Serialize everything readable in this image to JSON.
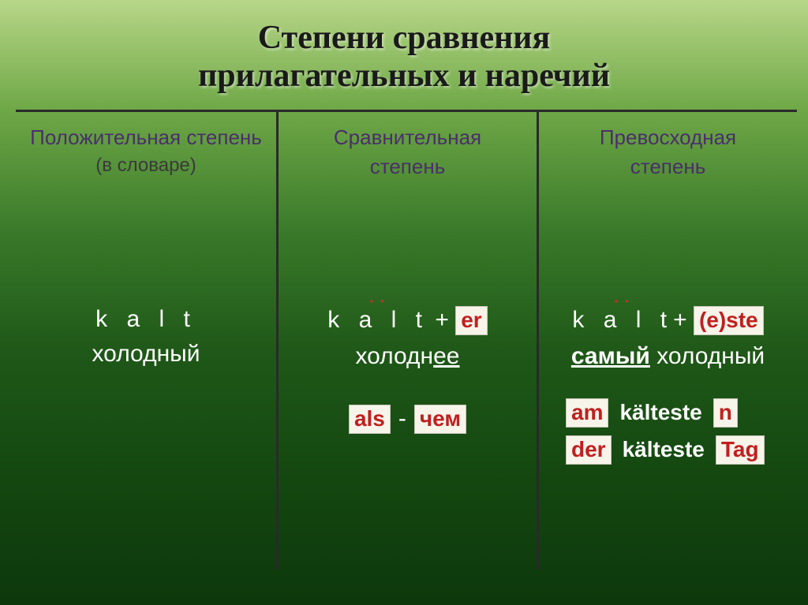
{
  "title_line1": "Степени сравнения",
  "title_line2": "прилагательных и наречий",
  "headers": {
    "pos": {
      "main": "Положительная степень",
      "sub": "(в словаре)"
    },
    "comp": {
      "main": "Сравнительная",
      "sub2": "степень"
    },
    "sup": {
      "main": "Превосходная",
      "sub2": "степень"
    }
  },
  "positive": {
    "word": "k a l t",
    "ru": "холодный"
  },
  "comparative": {
    "word": "k a l t",
    "plus": "+",
    "suffix": "er",
    "ru_stem": "холодн",
    "ru_end": "ее",
    "als": "als",
    "dash": "-",
    "chem": "чем"
  },
  "superlative": {
    "word": "k a l t",
    "plus": "+",
    "suffix": "(e)ste",
    "ru_prefix": "самый",
    "ru_word": "холодный",
    "am": "am",
    "form1": "kälteste",
    "n": "n",
    "der": "der",
    "form2": "kälteste",
    "tag": "Tag"
  },
  "colors": {
    "pill_bg": "#f7f4ea",
    "pill_fg": "#c0201e",
    "header_fg": "#4a2f6a",
    "border": "#2a2a2a"
  }
}
